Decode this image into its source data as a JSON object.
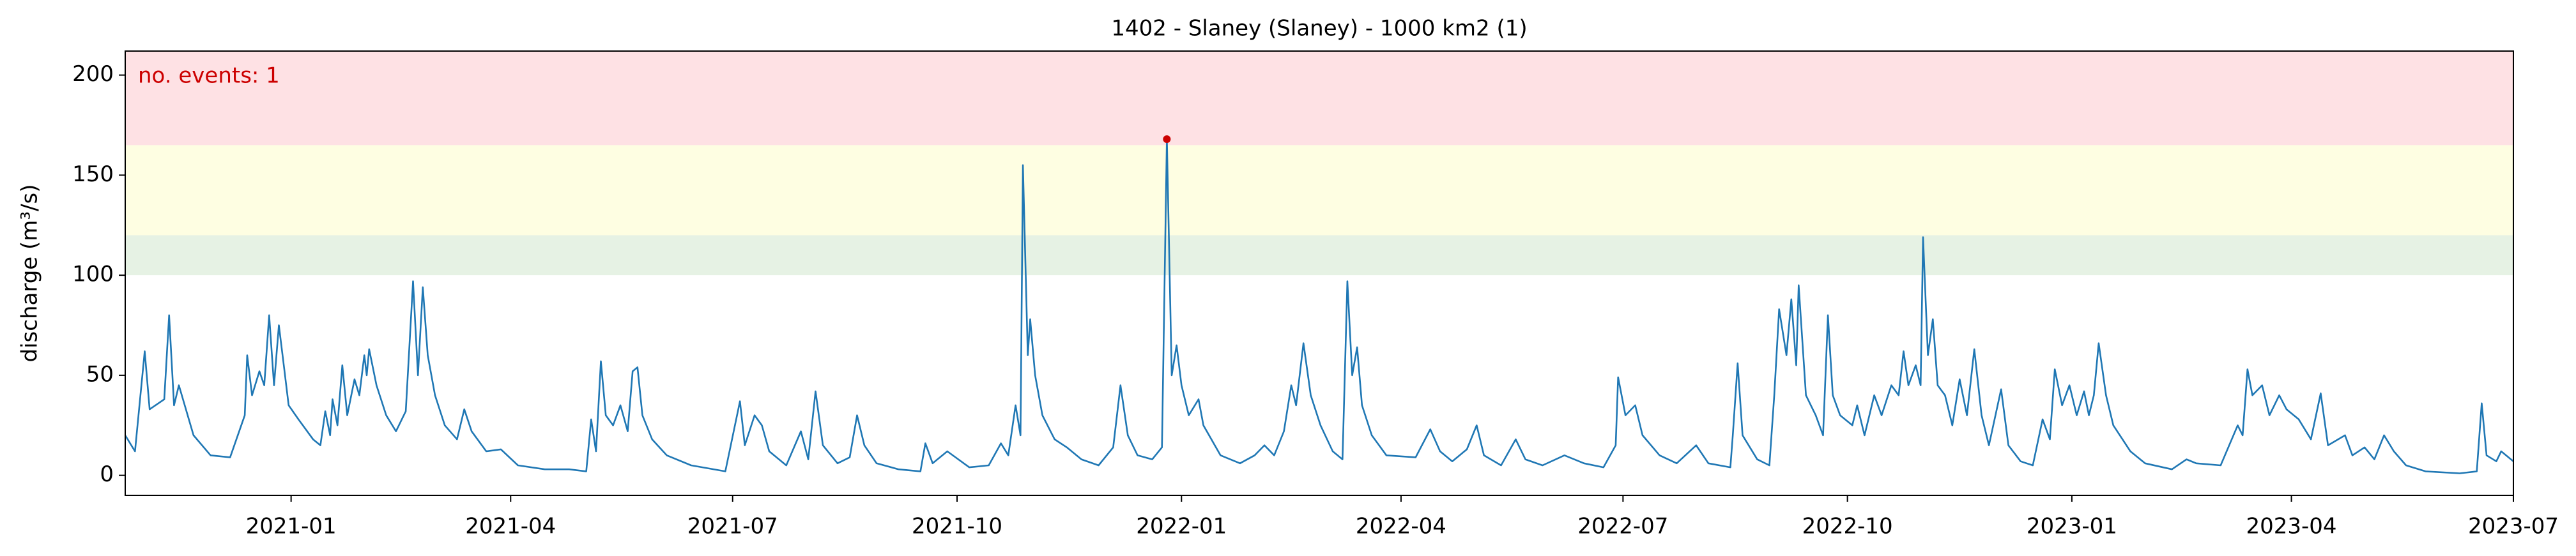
{
  "chart_data": {
    "type": "line",
    "title": "1402 - Slaney (Slaney) - 1000 km2 (1)",
    "y_label": "discharge (m³/s)",
    "annotation": "no. events: 1",
    "annotation_color": "#cc0000",
    "bands": [
      {
        "from": 100,
        "to": 120,
        "color": "#e6f2e4"
      },
      {
        "from": 120,
        "to": 165,
        "color": "#fefee2"
      },
      {
        "from": 165,
        "to": 212,
        "color": "#fee1e4"
      }
    ],
    "events": [
      {
        "x": "2021-12-26",
        "value": 168,
        "color": "#cc0000"
      }
    ],
    "xlim": [
      "2020-10-25",
      "2023-07-01"
    ],
    "xticks": [
      {
        "value": "2021-01-01",
        "label": "2021-01"
      },
      {
        "value": "2021-04-01",
        "label": "2021-04"
      },
      {
        "value": "2021-07-01",
        "label": "2021-07"
      },
      {
        "value": "2021-10-01",
        "label": "2021-10"
      },
      {
        "value": "2022-01-01",
        "label": "2022-01"
      },
      {
        "value": "2022-04-01",
        "label": "2022-04"
      },
      {
        "value": "2022-07-01",
        "label": "2022-07"
      },
      {
        "value": "2022-10-01",
        "label": "2022-10"
      },
      {
        "value": "2023-01-01",
        "label": "2023-01"
      },
      {
        "value": "2023-04-01",
        "label": "2023-04"
      },
      {
        "value": "2023-07-01",
        "label": "2023-07"
      }
    ],
    "ylim": [
      -10,
      212
    ],
    "yticks": [
      0,
      50,
      100,
      150,
      200
    ],
    "series": [
      {
        "name": "discharge",
        "color": "#1f77b4",
        "x": [
          "2020-10-25",
          "2020-10-29",
          "2020-11-02",
          "2020-11-04",
          "2020-11-10",
          "2020-11-12",
          "2020-11-14",
          "2020-11-16",
          "2020-11-22",
          "2020-11-29",
          "2020-12-07",
          "2020-12-13",
          "2020-12-14",
          "2020-12-16",
          "2020-12-19",
          "2020-12-21",
          "2020-12-23",
          "2020-12-25",
          "2020-12-27",
          "2020-12-29",
          "2020-12-31",
          "2021-01-04",
          "2021-01-10",
          "2021-01-13",
          "2021-01-15",
          "2021-01-17",
          "2021-01-18",
          "2021-01-20",
          "2021-01-22",
          "2021-01-24",
          "2021-01-27",
          "2021-01-29",
          "2021-01-31",
          "2021-02-01",
          "2021-02-02",
          "2021-02-05",
          "2021-02-09",
          "2021-02-13",
          "2021-02-17",
          "2021-02-20",
          "2021-02-22",
          "2021-02-24",
          "2021-02-26",
          "2021-03-01",
          "2021-03-05",
          "2021-03-10",
          "2021-03-13",
          "2021-03-16",
          "2021-03-22",
          "2021-03-28",
          "2021-04-04",
          "2021-04-15",
          "2021-04-25",
          "2021-05-02",
          "2021-05-04",
          "2021-05-06",
          "2021-05-08",
          "2021-05-10",
          "2021-05-13",
          "2021-05-16",
          "2021-05-19",
          "2021-05-21",
          "2021-05-23",
          "2021-05-25",
          "2021-05-29",
          "2021-06-04",
          "2021-06-14",
          "2021-06-28",
          "2021-07-04",
          "2021-07-06",
          "2021-07-10",
          "2021-07-13",
          "2021-07-16",
          "2021-07-23",
          "2021-07-29",
          "2021-08-01",
          "2021-08-04",
          "2021-08-07",
          "2021-08-13",
          "2021-08-18",
          "2021-08-21",
          "2021-08-24",
          "2021-08-29",
          "2021-09-07",
          "2021-09-16",
          "2021-09-18",
          "2021-09-21",
          "2021-09-27",
          "2021-10-06",
          "2021-10-14",
          "2021-10-19",
          "2021-10-22",
          "2021-10-25",
          "2021-10-27",
          "2021-10-28",
          "2021-10-30",
          "2021-10-31",
          "2021-11-02",
          "2021-11-05",
          "2021-11-10",
          "2021-11-15",
          "2021-11-21",
          "2021-11-28",
          "2021-12-04",
          "2021-12-07",
          "2021-12-10",
          "2021-12-14",
          "2021-12-20",
          "2021-12-24",
          "2021-12-26",
          "2021-12-28",
          "2021-12-30",
          "2022-01-01",
          "2022-01-04",
          "2022-01-08",
          "2022-01-10",
          "2022-01-17",
          "2022-01-25",
          "2022-01-31",
          "2022-02-04",
          "2022-02-08",
          "2022-02-12",
          "2022-02-15",
          "2022-02-17",
          "2022-02-20",
          "2022-02-23",
          "2022-02-27",
          "2022-03-04",
          "2022-03-08",
          "2022-03-10",
          "2022-03-12",
          "2022-03-14",
          "2022-03-16",
          "2022-03-20",
          "2022-03-26",
          "2022-04-07",
          "2022-04-13",
          "2022-04-17",
          "2022-04-22",
          "2022-04-28",
          "2022-05-02",
          "2022-05-05",
          "2022-05-12",
          "2022-05-18",
          "2022-05-22",
          "2022-05-29",
          "2022-06-07",
          "2022-06-15",
          "2022-06-23",
          "2022-06-28",
          "2022-06-29",
          "2022-07-02",
          "2022-07-06",
          "2022-07-09",
          "2022-07-16",
          "2022-07-23",
          "2022-07-31",
          "2022-08-05",
          "2022-08-14",
          "2022-08-15",
          "2022-08-17",
          "2022-08-19",
          "2022-08-25",
          "2022-08-30",
          "2022-09-01",
          "2022-09-03",
          "2022-09-06",
          "2022-09-08",
          "2022-09-10",
          "2022-09-11",
          "2022-09-14",
          "2022-09-18",
          "2022-09-21",
          "2022-09-23",
          "2022-09-25",
          "2022-09-28",
          "2022-10-03",
          "2022-10-05",
          "2022-10-08",
          "2022-10-12",
          "2022-10-15",
          "2022-10-19",
          "2022-10-22",
          "2022-10-24",
          "2022-10-26",
          "2022-10-29",
          "2022-10-31",
          "2022-11-01",
          "2022-11-03",
          "2022-11-05",
          "2022-11-07",
          "2022-11-10",
          "2022-11-13",
          "2022-11-16",
          "2022-11-19",
          "2022-11-22",
          "2022-11-25",
          "2022-11-28",
          "2022-12-03",
          "2022-12-06",
          "2022-12-11",
          "2022-12-16",
          "2022-12-20",
          "2022-12-23",
          "2022-12-25",
          "2022-12-28",
          "2022-12-31",
          "2023-01-03",
          "2023-01-06",
          "2023-01-08",
          "2023-01-10",
          "2023-01-12",
          "2023-01-15",
          "2023-01-18",
          "2023-01-25",
          "2023-01-31",
          "2023-02-11",
          "2023-02-17",
          "2023-02-21",
          "2023-03-03",
          "2023-03-10",
          "2023-03-12",
          "2023-03-14",
          "2023-03-16",
          "2023-03-20",
          "2023-03-23",
          "2023-03-27",
          "2023-03-30",
          "2023-04-04",
          "2023-04-09",
          "2023-04-13",
          "2023-04-16",
          "2023-04-23",
          "2023-04-26",
          "2023-05-01",
          "2023-05-05",
          "2023-05-09",
          "2023-05-13",
          "2023-05-18",
          "2023-05-26",
          "2023-06-09",
          "2023-06-16",
          "2023-06-18",
          "2023-06-20",
          "2023-06-24",
          "2023-06-26",
          "2023-06-30",
          "2023-07-01"
        ],
        "values": [
          20,
          12,
          62,
          33,
          38,
          80,
          35,
          45,
          20,
          10,
          9,
          30,
          60,
          40,
          52,
          45,
          80,
          45,
          75,
          55,
          35,
          28,
          18,
          15,
          32,
          20,
          38,
          25,
          55,
          30,
          48,
          40,
          60,
          50,
          63,
          45,
          30,
          22,
          32,
          97,
          50,
          94,
          60,
          40,
          25,
          18,
          33,
          22,
          12,
          13,
          5,
          3,
          3,
          2,
          28,
          12,
          57,
          30,
          25,
          35,
          22,
          52,
          54,
          30,
          18,
          10,
          5,
          2,
          37,
          15,
          30,
          25,
          12,
          5,
          22,
          8,
          42,
          15,
          6,
          9,
          30,
          15,
          6,
          3,
          2,
          16,
          6,
          12,
          4,
          5,
          16,
          10,
          35,
          20,
          155,
          60,
          78,
          50,
          30,
          18,
          14,
          8,
          5,
          14,
          45,
          20,
          10,
          8,
          14,
          168,
          50,
          65,
          45,
          30,
          38,
          25,
          10,
          6,
          10,
          15,
          10,
          22,
          45,
          35,
          66,
          40,
          25,
          12,
          8,
          97,
          50,
          64,
          35,
          20,
          10,
          9,
          23,
          12,
          7,
          13,
          25,
          10,
          5,
          18,
          8,
          5,
          10,
          6,
          4,
          15,
          49,
          30,
          35,
          20,
          10,
          6,
          15,
          6,
          4,
          20,
          56,
          20,
          8,
          5,
          40,
          83,
          60,
          88,
          55,
          95,
          40,
          30,
          20,
          80,
          40,
          30,
          25,
          35,
          20,
          40,
          30,
          45,
          40,
          62,
          45,
          55,
          45,
          119,
          60,
          78,
          45,
          40,
          25,
          48,
          30,
          63,
          30,
          15,
          43,
          15,
          7,
          5,
          28,
          18,
          53,
          35,
          45,
          30,
          42,
          30,
          40,
          66,
          40,
          25,
          12,
          6,
          3,
          8,
          6,
          5,
          25,
          20,
          53,
          40,
          45,
          30,
          40,
          33,
          28,
          18,
          41,
          15,
          20,
          10,
          14,
          8,
          20,
          12,
          5,
          2,
          1,
          2,
          36,
          10,
          7,
          12,
          8,
          7
        ]
      }
    ]
  }
}
